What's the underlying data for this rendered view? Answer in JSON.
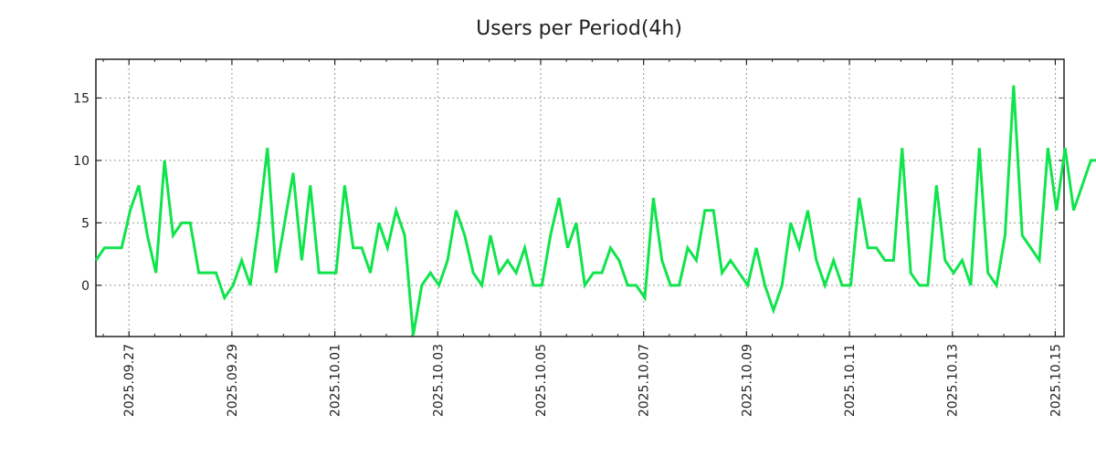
{
  "chart_data": {
    "type": "line",
    "title": "Users per Period(4h)",
    "xlabel": "",
    "ylabel": "",
    "x_unit": "days since 2025.09.27 00:00",
    "x_start": -0.643,
    "x_step": 0.16667,
    "xlim": [
      -0.643,
      18.17
    ],
    "ylim": [
      -4.1,
      18.1
    ],
    "grid": true,
    "x_ticks": [
      {
        "value": 0,
        "label": "2025.09.27"
      },
      {
        "value": 2,
        "label": "2025.09.29"
      },
      {
        "value": 4,
        "label": "2025.10.01"
      },
      {
        "value": 6,
        "label": "2025.10.03"
      },
      {
        "value": 8,
        "label": "2025.10.05"
      },
      {
        "value": 10,
        "label": "2025.10.07"
      },
      {
        "value": 12,
        "label": "2025.10.09"
      },
      {
        "value": 14,
        "label": "2025.10.11"
      },
      {
        "value": 16,
        "label": "2025.10.13"
      },
      {
        "value": 18,
        "label": "2025.10.15"
      }
    ],
    "y_ticks": [
      {
        "value": 0,
        "label": "0"
      },
      {
        "value": 5,
        "label": "5"
      },
      {
        "value": 10,
        "label": "10"
      },
      {
        "value": 15,
        "label": "15"
      }
    ],
    "series": [
      {
        "name": "Users",
        "color": "#10e44c",
        "values": [
          2,
          3,
          3,
          3,
          6,
          8,
          4,
          1,
          10,
          4,
          5,
          5,
          1,
          1,
          1,
          -1,
          0,
          2,
          0,
          5,
          11,
          1,
          5,
          9,
          2,
          8,
          1,
          1,
          1,
          8,
          3,
          3,
          1,
          5,
          3,
          6,
          4,
          -4,
          0,
          1,
          0,
          2,
          6,
          4,
          1,
          0,
          4,
          1,
          2,
          1,
          3,
          0,
          0,
          4,
          7,
          3,
          5,
          0,
          1,
          1,
          3,
          2,
          0,
          0,
          -1,
          7,
          2,
          0,
          0,
          3,
          2,
          6,
          6,
          1,
          2,
          1,
          0,
          3,
          0,
          -2,
          0,
          5,
          3,
          6,
          2,
          0,
          2,
          0,
          0,
          7,
          3,
          3,
          2,
          2,
          11,
          1,
          0,
          0,
          8,
          2,
          1,
          2,
          0,
          11,
          1,
          0,
          4,
          16,
          4,
          3,
          2,
          11,
          6,
          11,
          6,
          8,
          10,
          10
        ]
      }
    ]
  }
}
